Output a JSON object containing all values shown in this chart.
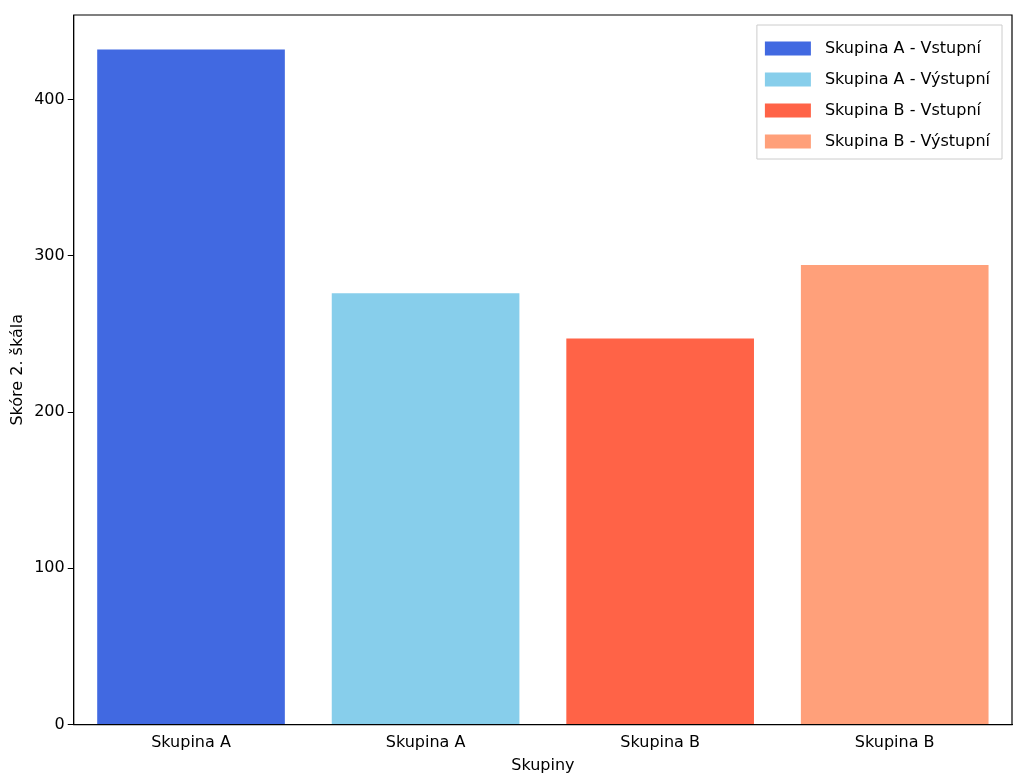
{
  "chart_data": {
    "type": "bar",
    "xlabel": "Skupiny",
    "ylabel": "Skóre 2. škála",
    "categories": [
      "Skupina A",
      "Skupina A",
      "Skupina B",
      "Skupina B"
    ],
    "series": [
      {
        "name": "Skupina A - Vstupní",
        "color": "#4169e1",
        "values": [
          432,
          null,
          null,
          null
        ]
      },
      {
        "name": "Skupina A - Výstupní",
        "color": "#87ceeb",
        "values": [
          null,
          276,
          null,
          null
        ]
      },
      {
        "name": "Skupina B - Vstupní",
        "color": "#ff6347",
        "values": [
          null,
          null,
          247,
          null
        ]
      },
      {
        "name": "Skupina B - Výstupní",
        "color": "#ffa07a",
        "values": [
          null,
          null,
          null,
          294
        ]
      }
    ],
    "ylim": [
      0,
      454
    ],
    "yticks": [
      0,
      100,
      200,
      300,
      400
    ],
    "grid": false,
    "legend": "top right"
  }
}
